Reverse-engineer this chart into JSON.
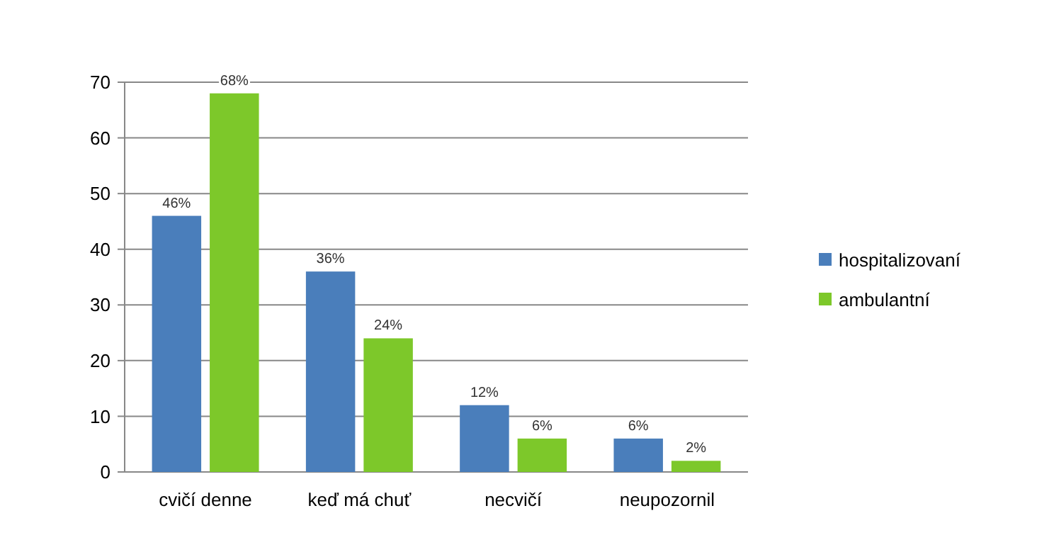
{
  "chart_data": {
    "type": "bar",
    "categories": [
      "cvičí denne",
      "keď má chuť",
      "necvičí",
      "neupozornil"
    ],
    "series": [
      {
        "name": "hospitalizovaní",
        "color": "#4a7ebb",
        "values": [
          46,
          36,
          12,
          6
        ],
        "value_labels": [
          "46%",
          "36%",
          "12%",
          "6%"
        ]
      },
      {
        "name": "ambulantní",
        "color": "#7dc82a",
        "values": [
          68,
          24,
          6,
          2
        ],
        "value_labels": [
          "68%",
          "24%",
          "6%",
          "2%"
        ]
      }
    ],
    "ylim": [
      0,
      70
    ],
    "yticks": [
      0,
      10,
      20,
      30,
      40,
      50,
      60,
      70
    ],
    "grid": "y",
    "legend": "right"
  }
}
